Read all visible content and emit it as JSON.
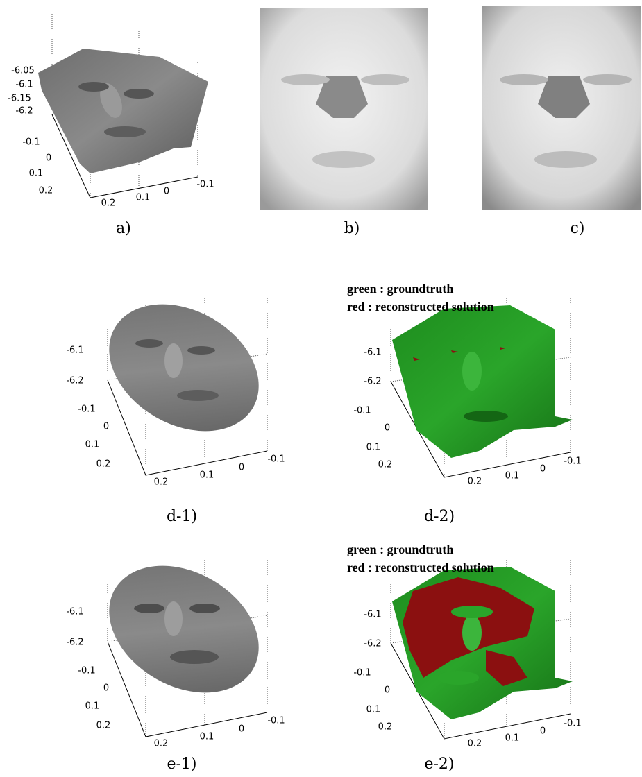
{
  "panels": [
    {
      "caption": "a)",
      "ticks": [
        "-6.05",
        "-6.1",
        "-6.15",
        "-6.2",
        "-0.1",
        "0",
        "0.1",
        "0.2",
        "0.2",
        "0.1",
        "0",
        "-0.1"
      ]
    },
    {
      "caption": "b)"
    },
    {
      "caption": "c)"
    },
    {
      "caption": "d-1)",
      "ticks": [
        "-6.1",
        "-6.2",
        "-0.1",
        "0",
        "0.1",
        "0.2",
        "0.2",
        "0.1",
        "0",
        "-0.1"
      ]
    },
    {
      "caption": "d-2)",
      "legend": [
        "green : groundtruth",
        "red : reconstructed solution"
      ],
      "ticks": [
        "-6.1",
        "-6.2",
        "-0.1",
        "0",
        "0.1",
        "0.2",
        "0.2",
        "0.1",
        "0",
        "-0.1"
      ]
    },
    {
      "caption": "e-1)",
      "ticks": [
        "-6.1",
        "-6.2",
        "-0.1",
        "0",
        "0.1",
        "0.2",
        "0.2",
        "0.1",
        "0",
        "-0.1"
      ]
    },
    {
      "caption": "e-2)",
      "legend": [
        "green : groundtruth",
        "red : reconstructed solution"
      ],
      "ticks": [
        "-6.1",
        "-6.2",
        "-0.1",
        "0",
        "0.1",
        "0.2",
        "0.2",
        "0.1",
        "0",
        "-0.1"
      ]
    }
  ]
}
